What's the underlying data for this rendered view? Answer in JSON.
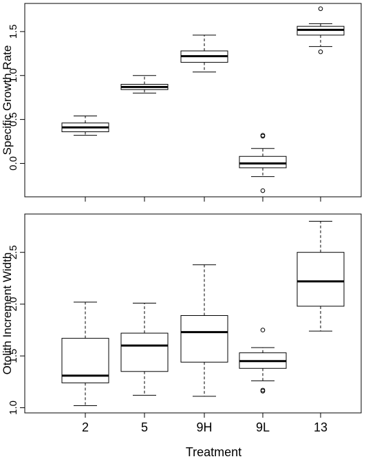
{
  "chart_data": [
    {
      "type": "box",
      "title": "",
      "xlabel": "",
      "ylabel": "Specific Growth Rate",
      "ylim": [
        -0.38,
        1.82
      ],
      "yticks": [
        0.0,
        0.5,
        1.0,
        1.5
      ],
      "ytick_labels": [
        "0.0",
        "0.5",
        "1.0",
        "1.5"
      ],
      "categories": [
        "2",
        "5",
        "9H",
        "9L",
        "13"
      ],
      "show_x_tick_labels": false,
      "boxes": [
        {
          "category": "2",
          "whisker_low": 0.32,
          "q1": 0.36,
          "median": 0.41,
          "q3": 0.46,
          "whisker_high": 0.54,
          "outliers": []
        },
        {
          "category": "5",
          "whisker_low": 0.8,
          "q1": 0.84,
          "median": 0.87,
          "q3": 0.9,
          "whisker_high": 1.0,
          "outliers": []
        },
        {
          "category": "9H",
          "whisker_low": 1.04,
          "q1": 1.15,
          "median": 1.22,
          "q3": 1.28,
          "whisker_high": 1.46,
          "outliers": []
        },
        {
          "category": "9L",
          "whisker_low": -0.15,
          "q1": -0.05,
          "median": 0.0,
          "q3": 0.08,
          "whisker_high": 0.17,
          "outliers": [
            0.32,
            0.31,
            -0.31
          ]
        },
        {
          "category": "13",
          "whisker_low": 1.33,
          "q1": 1.46,
          "median": 1.52,
          "q3": 1.56,
          "whisker_high": 1.59,
          "outliers": [
            1.76,
            1.27
          ]
        }
      ]
    },
    {
      "type": "box",
      "title": "",
      "xlabel": "Treatment",
      "ylabel": "Otolith Increment Width",
      "ylim": [
        0.95,
        2.87
      ],
      "yticks": [
        1.0,
        1.5,
        2.0,
        2.5
      ],
      "ytick_labels": [
        "1.0",
        "1.5",
        "2.0",
        "2.5"
      ],
      "categories": [
        "2",
        "5",
        "9H",
        "9L",
        "13"
      ],
      "show_x_tick_labels": true,
      "boxes": [
        {
          "category": "2",
          "whisker_low": 1.02,
          "q1": 1.24,
          "median": 1.31,
          "q3": 1.67,
          "whisker_high": 2.02,
          "outliers": []
        },
        {
          "category": "5",
          "whisker_low": 1.12,
          "q1": 1.35,
          "median": 1.6,
          "q3": 1.72,
          "whisker_high": 2.01,
          "outliers": []
        },
        {
          "category": "9H",
          "whisker_low": 1.11,
          "q1": 1.44,
          "median": 1.73,
          "q3": 1.89,
          "whisker_high": 2.38,
          "outliers": []
        },
        {
          "category": "9L",
          "whisker_low": 1.26,
          "q1": 1.38,
          "median": 1.45,
          "q3": 1.53,
          "whisker_high": 1.58,
          "outliers": [
            1.75,
            1.17,
            1.16
          ]
        },
        {
          "category": "13",
          "whisker_low": 1.74,
          "q1": 1.98,
          "median": 2.22,
          "q3": 2.5,
          "whisker_high": 2.8,
          "outliers": []
        }
      ]
    }
  ]
}
